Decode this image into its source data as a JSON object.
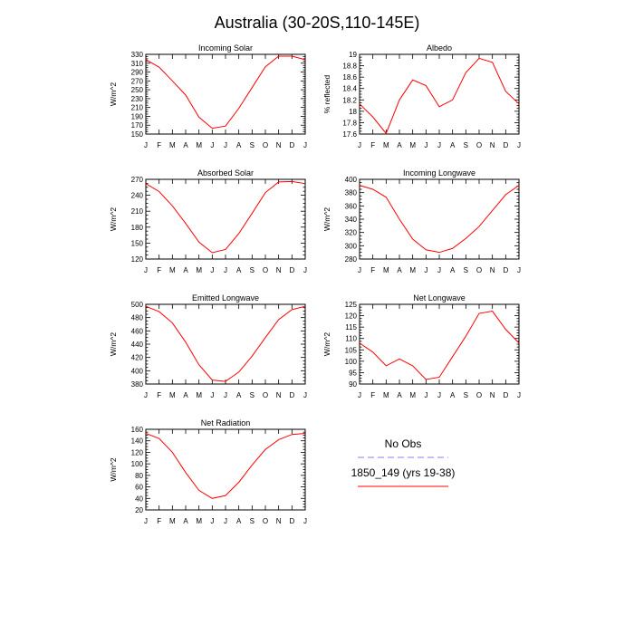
{
  "title": "Australia (30-20S,110-145E)",
  "chart_data": [
    {
      "type": "line",
      "title": "Incoming Solar",
      "ylabel": "W/m^2",
      "categories": [
        "J",
        "F",
        "M",
        "A",
        "M",
        "J",
        "J",
        "A",
        "S",
        "O",
        "N",
        "D",
        "J"
      ],
      "yticks": [
        150,
        170,
        190,
        210,
        230,
        250,
        270,
        290,
        310,
        330
      ],
      "ylim": [
        150,
        330
      ],
      "series": [
        {
          "name": "1850_149 (yrs 19-38)",
          "color": "#ff0000",
          "values": [
            318,
            301,
            270,
            238,
            188,
            163,
            168,
            208,
            255,
            302,
            326,
            326,
            318
          ]
        }
      ]
    },
    {
      "type": "line",
      "title": "Albedo",
      "ylabel": "% reflected",
      "categories": [
        "J",
        "F",
        "M",
        "A",
        "M",
        "J",
        "J",
        "A",
        "S",
        "O",
        "N",
        "D",
        "J"
      ],
      "yticks": [
        17.6,
        17.8,
        18.0,
        18.2,
        18.4,
        18.6,
        18.8,
        19.0
      ],
      "ylim": [
        17.6,
        19.0
      ],
      "series": [
        {
          "name": "1850_149 (yrs 19-38)",
          "color": "#ff0000",
          "values": [
            18.13,
            17.9,
            17.61,
            18.2,
            18.55,
            18.45,
            18.08,
            18.2,
            18.68,
            18.93,
            18.86,
            18.35,
            18.13
          ]
        }
      ]
    },
    {
      "type": "line",
      "title": "Absorbed Solar",
      "ylabel": "W/m^2",
      "categories": [
        "J",
        "F",
        "M",
        "A",
        "M",
        "J",
        "J",
        "A",
        "S",
        "O",
        "N",
        "D",
        "J"
      ],
      "yticks": [
        120,
        150,
        180,
        210,
        240,
        270
      ],
      "ylim": [
        120,
        270
      ],
      "series": [
        {
          "name": "1850_149 (yrs 19-38)",
          "color": "#ff0000",
          "values": [
            262,
            247,
            220,
            187,
            152,
            132,
            138,
            168,
            206,
            245,
            265,
            266,
            262
          ]
        }
      ]
    },
    {
      "type": "line",
      "title": "Incoming Longwave",
      "ylabel": "W/m^2",
      "categories": [
        "J",
        "F",
        "M",
        "A",
        "M",
        "J",
        "J",
        "A",
        "S",
        "O",
        "N",
        "D",
        "J"
      ],
      "yticks": [
        280,
        300,
        320,
        340,
        360,
        380,
        400
      ],
      "ylim": [
        280,
        400
      ],
      "series": [
        {
          "name": "1850_149 (yrs 19-38)",
          "color": "#ff0000",
          "values": [
            391,
            385,
            373,
            340,
            310,
            294,
            290,
            296,
            311,
            329,
            353,
            377,
            391
          ]
        }
      ]
    },
    {
      "type": "line",
      "title": "Emitted Longwave",
      "ylabel": "W/m^2",
      "categories": [
        "J",
        "F",
        "M",
        "A",
        "M",
        "J",
        "J",
        "A",
        "S",
        "O",
        "N",
        "D",
        "J"
      ],
      "yticks": [
        380,
        400,
        420,
        440,
        460,
        480,
        500
      ],
      "ylim": [
        380,
        500
      ],
      "series": [
        {
          "name": "1850_149 (yrs 19-38)",
          "color": "#ff0000",
          "values": [
            497,
            489,
            472,
            443,
            409,
            386,
            384,
            398,
            422,
            450,
            477,
            492,
            497
          ]
        }
      ]
    },
    {
      "type": "line",
      "title": "Net Longwave",
      "ylabel": "W/m^2",
      "categories": [
        "J",
        "F",
        "M",
        "A",
        "M",
        "J",
        "J",
        "A",
        "S",
        "O",
        "N",
        "D",
        "J"
      ],
      "yticks": [
        90,
        95,
        100,
        105,
        110,
        115,
        120,
        125
      ],
      "ylim": [
        90,
        125
      ],
      "series": [
        {
          "name": "1850_149 (yrs 19-38)",
          "color": "#ff0000",
          "values": [
            108,
            104,
            98,
            101,
            98,
            92,
            93,
            102,
            111,
            121,
            122,
            114,
            108
          ]
        }
      ]
    },
    {
      "type": "line",
      "title": "Net Radiation",
      "ylabel": "W/m^2",
      "categories": [
        "J",
        "F",
        "M",
        "A",
        "M",
        "J",
        "J",
        "A",
        "S",
        "O",
        "N",
        "D",
        "J"
      ],
      "yticks": [
        20,
        40,
        60,
        80,
        100,
        120,
        140,
        160
      ],
      "ylim": [
        20,
        160
      ],
      "series": [
        {
          "name": "1850_149 (yrs 19-38)",
          "color": "#ff0000",
          "values": [
            153,
            144,
            120,
            85,
            54,
            40,
            45,
            68,
            98,
            125,
            142,
            151,
            153
          ]
        }
      ]
    }
  ],
  "legend": [
    {
      "label": "No Obs",
      "color": "#8080ff",
      "style": "dashed"
    },
    {
      "label": "1850_149 (yrs 19-38)",
      "color": "#ff0000",
      "style": "solid"
    }
  ]
}
